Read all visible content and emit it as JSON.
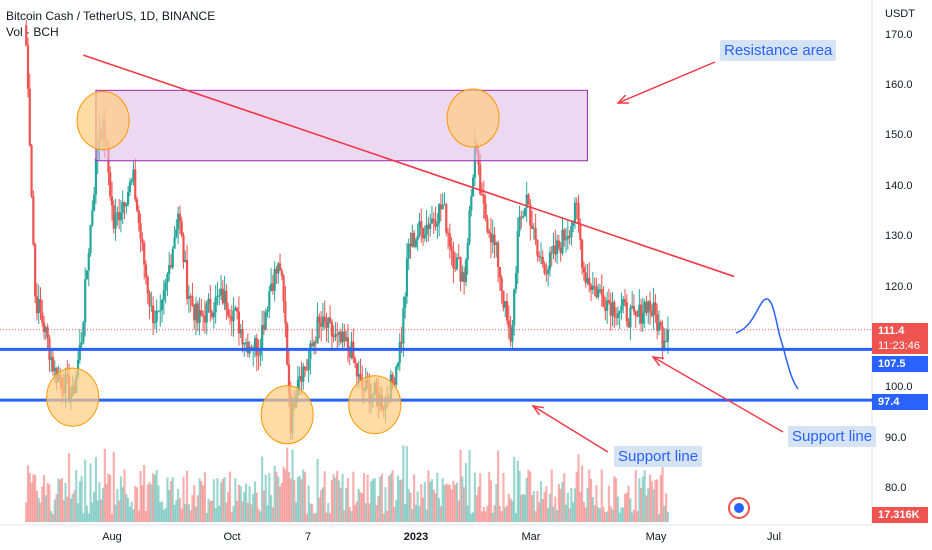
{
  "header": {
    "title": "Bitcoin Cash / TetherUS, 1D, BINANCE",
    "vol_label": "Vol · BCH"
  },
  "y_axis": {
    "currency": "USDT",
    "ticks": [
      "170.0",
      "160.0",
      "150.0",
      "140.0",
      "130.0",
      "120.0",
      "110.0",
      "100.0",
      "90.0",
      "80.0"
    ]
  },
  "x_axis": {
    "ticks": [
      "Aug",
      "Oct",
      "7",
      "2023",
      "Mar",
      "May",
      "Jul"
    ]
  },
  "price_badges": {
    "last_price": "111.4",
    "countdown": "11:23:46",
    "level_upper": "107.5",
    "level_lower": "97.4",
    "volume": "17.316K"
  },
  "annotations": {
    "resistance": "Resistance area",
    "support_right": "Support line",
    "support_mid": "Support line"
  },
  "colors": {
    "up": "#26a69a",
    "down": "#ef5350",
    "support": "#2962ff",
    "trendline": "#f23645",
    "zone_fill": "#e1bee7",
    "zone_stroke": "#9c27b0",
    "circle_fill": "#ffcc80",
    "circle_stroke": "#ff9800"
  },
  "chart_data": {
    "type": "candlestick",
    "symbol": "BCHUSDT",
    "timeframe": "1D",
    "exchange": "BINANCE",
    "y_unit": "USDT",
    "ylim": [
      77,
      178
    ],
    "x_range": [
      "2022-06-14",
      "2023-07-08"
    ],
    "price_path": [
      [
        "2022-06-14",
        168
      ],
      [
        "2022-06-16",
        150
      ],
      [
        "2022-06-19",
        118
      ],
      [
        "2022-06-24",
        112
      ],
      [
        "2022-06-30",
        103
      ],
      [
        "2022-07-05",
        101
      ],
      [
        "2022-07-10",
        98
      ],
      [
        "2022-07-15",
        110
      ],
      [
        "2022-07-19",
        128
      ],
      [
        "2022-07-25",
        152
      ],
      [
        "2022-07-28",
        150
      ],
      [
        "2022-08-02",
        132
      ],
      [
        "2022-08-08",
        138
      ],
      [
        "2022-08-13",
        141
      ],
      [
        "2022-08-18",
        127
      ],
      [
        "2022-08-23",
        115
      ],
      [
        "2022-08-28",
        113
      ],
      [
        "2022-09-02",
        124
      ],
      [
        "2022-09-07",
        135
      ],
      [
        "2022-09-12",
        120
      ],
      [
        "2022-09-18",
        113
      ],
      [
        "2022-09-25",
        116
      ],
      [
        "2022-10-02",
        118
      ],
      [
        "2022-10-08",
        115
      ],
      [
        "2022-10-15",
        109
      ],
      [
        "2022-10-22",
        108
      ],
      [
        "2022-10-29",
        121
      ],
      [
        "2022-11-03",
        124
      ],
      [
        "2022-11-06",
        112
      ],
      [
        "2022-11-09",
        93
      ],
      [
        "2022-11-13",
        103
      ],
      [
        "2022-11-18",
        104
      ],
      [
        "2022-11-24",
        112
      ],
      [
        "2022-11-29",
        112
      ],
      [
        "2022-12-05",
        109
      ],
      [
        "2022-12-12",
        108
      ],
      [
        "2022-12-18",
        100
      ],
      [
        "2022-12-24",
        99
      ],
      [
        "2022-12-31",
        97
      ],
      [
        "2023-01-05",
        101
      ],
      [
        "2023-01-10",
        110
      ],
      [
        "2023-01-14",
        128
      ],
      [
        "2023-01-20",
        131
      ],
      [
        "2023-01-26",
        133
      ],
      [
        "2023-02-02",
        136
      ],
      [
        "2023-02-08",
        126
      ],
      [
        "2023-02-14",
        122
      ],
      [
        "2023-02-18",
        138
      ],
      [
        "2023-02-20",
        148
      ],
      [
        "2023-02-24",
        136
      ],
      [
        "2023-02-28",
        132
      ],
      [
        "2023-03-05",
        125
      ],
      [
        "2023-03-09",
        115
      ],
      [
        "2023-03-12",
        108
      ],
      [
        "2023-03-16",
        130
      ],
      [
        "2023-03-21",
        138
      ],
      [
        "2023-03-27",
        126
      ],
      [
        "2023-04-02",
        124
      ],
      [
        "2023-04-08",
        128
      ],
      [
        "2023-04-14",
        132
      ],
      [
        "2023-04-18",
        135
      ],
      [
        "2023-04-22",
        123
      ],
      [
        "2023-04-27",
        120
      ],
      [
        "2023-05-03",
        118
      ],
      [
        "2023-05-09",
        116
      ],
      [
        "2023-05-15",
        115
      ],
      [
        "2023-05-21",
        113
      ],
      [
        "2023-05-27",
        117
      ],
      [
        "2023-06-01",
        114
      ],
      [
        "2023-06-05",
        110
      ],
      [
        "2023-06-08",
        111.4
      ]
    ],
    "levels": [
      107.5,
      97.4
    ],
    "resistance_zone": {
      "from": "2022-07-23",
      "to": "2023-04-24",
      "low": 145,
      "high": 159
    },
    "trendline": {
      "start": [
        "2022-07-16",
        166
      ],
      "end": [
        "2023-07-15",
        122
      ]
    },
    "last_price": 111.4
  }
}
